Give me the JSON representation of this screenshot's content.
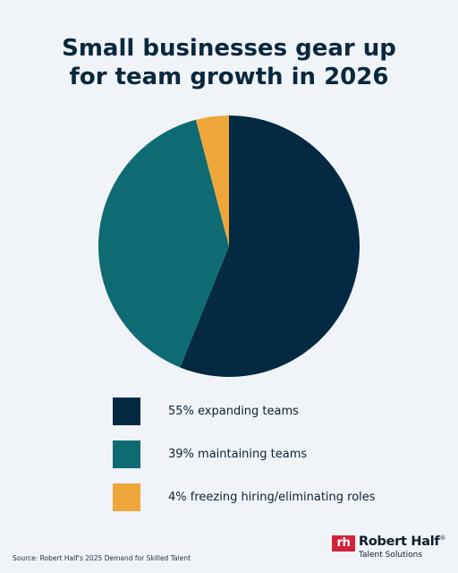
{
  "chart_data": {
    "type": "pie",
    "title_lines": [
      "Small businesses gear up",
      "for team growth in 2026"
    ],
    "slices": [
      {
        "label": "55% expanding teams",
        "value": 55,
        "color": "#032a42"
      },
      {
        "label": "39% maintaining teams",
        "value": 39,
        "color": "#0e6b73"
      },
      {
        "label": "4% freezing hiring/eliminating roles",
        "value": 4,
        "color": "#eea63a"
      }
    ],
    "legend_position": "bottom"
  },
  "footer": {
    "source": "Source: Robert Half's 2025 Demand for Skilled Talent"
  },
  "logo": {
    "mark": "rh",
    "name": "Robert Half",
    "trademark": "®",
    "tagline": "Talent Solutions"
  }
}
